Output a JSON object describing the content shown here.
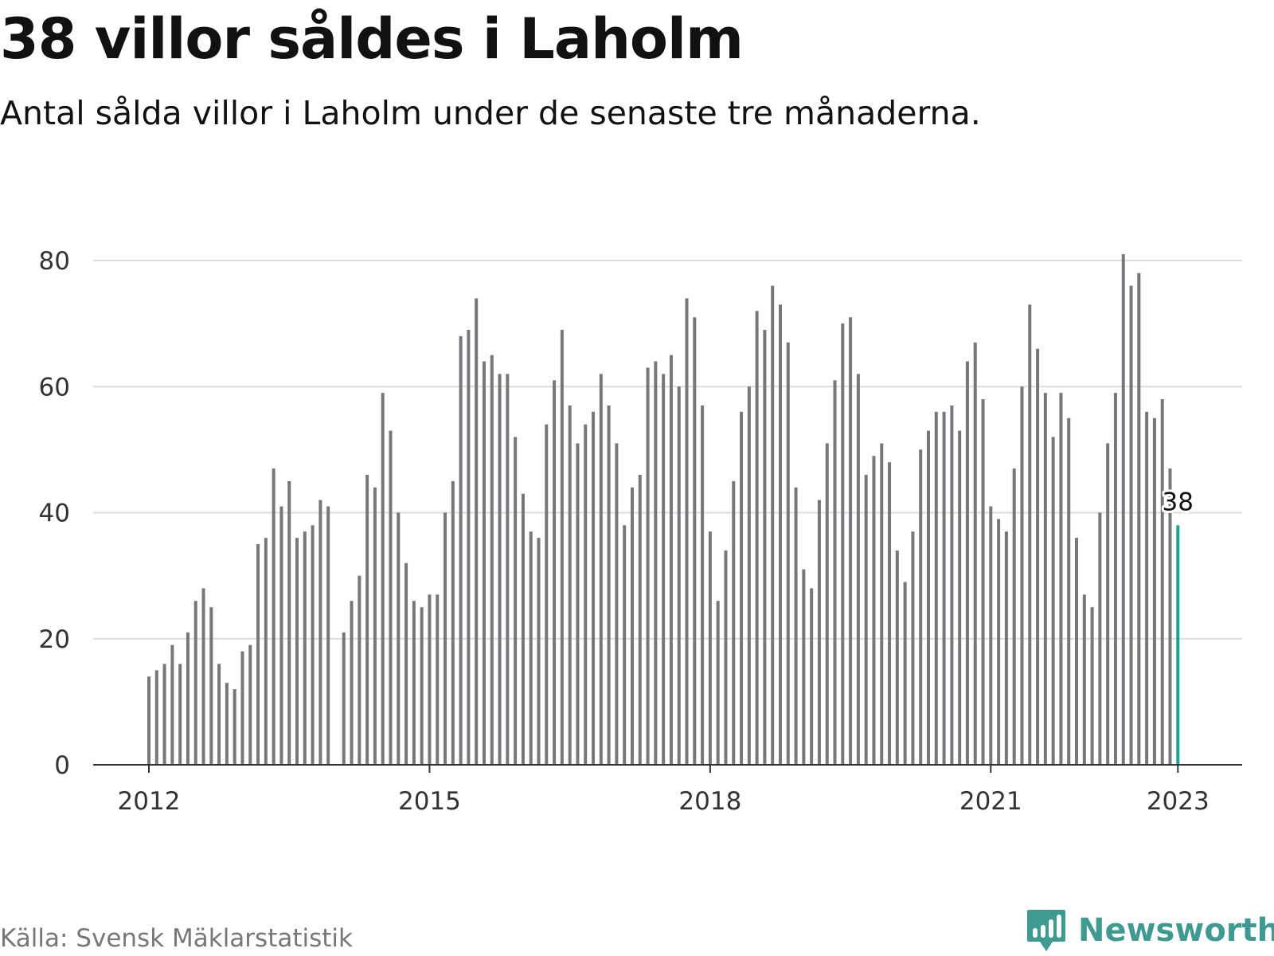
{
  "title": "38 villor såldes i Laholm",
  "subtitle": "Antal sålda villor i Laholm under de senaste tre månaderna.",
  "source": "Källa: Svensk Mäklarstatistik",
  "brand": {
    "name": "Newsworthy",
    "icon": "newsworthy-logo-icon"
  },
  "colors": {
    "bar": "#76767b",
    "highlight": "#1aa393",
    "grid": "#dddddd",
    "axis": "#333333"
  },
  "chart_data": {
    "type": "bar",
    "x_start": "2012-01",
    "ylim": [
      0,
      80
    ],
    "yticks": [
      0,
      20,
      40,
      60,
      80
    ],
    "xticks": [
      "2012",
      "2015",
      "2018",
      "2021",
      "2023"
    ],
    "highlight_label": "38",
    "values": [
      14,
      15,
      16,
      19,
      16,
      21,
      26,
      28,
      25,
      16,
      13,
      12,
      18,
      19,
      35,
      36,
      47,
      41,
      45,
      36,
      37,
      38,
      42,
      41,
      null,
      21,
      26,
      30,
      46,
      44,
      59,
      53,
      40,
      32,
      26,
      25,
      27,
      27,
      40,
      45,
      68,
      69,
      74,
      64,
      65,
      62,
      62,
      52,
      43,
      37,
      36,
      54,
      61,
      69,
      57,
      51,
      54,
      56,
      62,
      57,
      51,
      38,
      44,
      46,
      63,
      64,
      62,
      65,
      60,
      74,
      71,
      57,
      37,
      26,
      34,
      45,
      56,
      60,
      72,
      69,
      76,
      73,
      67,
      44,
      31,
      28,
      42,
      51,
      61,
      70,
      71,
      62,
      46,
      49,
      51,
      48,
      34,
      29,
      37,
      50,
      53,
      56,
      56,
      57,
      53,
      64,
      67,
      58,
      41,
      39,
      37,
      47,
      60,
      73,
      66,
      59,
      52,
      59,
      55,
      36,
      27,
      25,
      40,
      51,
      59,
      81,
      76,
      78,
      56,
      55,
      58,
      47,
      38
    ]
  }
}
